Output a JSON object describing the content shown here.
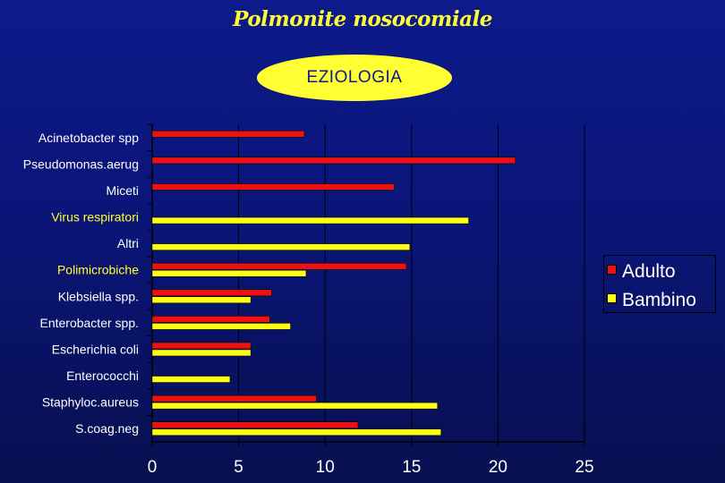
{
  "title": "Polmonite nosocomiale",
  "badge": "EZIOLOGIA",
  "colors": {
    "Adulto": "#ee1111",
    "Bambino": "#ffff11",
    "background": "#0a1578"
  },
  "chart_data": {
    "type": "bar",
    "orientation": "horizontal",
    "categories": [
      "Acinetobacter spp",
      "Pseudomonas.aerug",
      "Miceti",
      "Virus respiratori",
      "Altri",
      "Polimicrobiche",
      "Klebsiella spp.",
      "Enterobacter spp.",
      "Escherichia coli",
      "Enterococchi",
      "Staphyloc.aureus",
      "S.coag.neg"
    ],
    "category_label_color": [
      "white",
      "white",
      "white",
      "yellow",
      "white",
      "yellow",
      "white",
      "white",
      "white",
      "white",
      "white",
      "white"
    ],
    "series": [
      {
        "name": "Adulto",
        "values": [
          8.8,
          21,
          14,
          null,
          null,
          14.7,
          6.9,
          6.8,
          5.7,
          null,
          9.5,
          11.9
        ]
      },
      {
        "name": "Bambino",
        "values": [
          null,
          null,
          null,
          18.3,
          14.9,
          8.9,
          5.7,
          8.0,
          5.7,
          4.5,
          16.5,
          16.7
        ]
      }
    ],
    "xlim": [
      0,
      25
    ],
    "xticks": [
      "0",
      "5",
      "10",
      "15",
      "20",
      "25"
    ],
    "grid": true,
    "legend": "right"
  }
}
